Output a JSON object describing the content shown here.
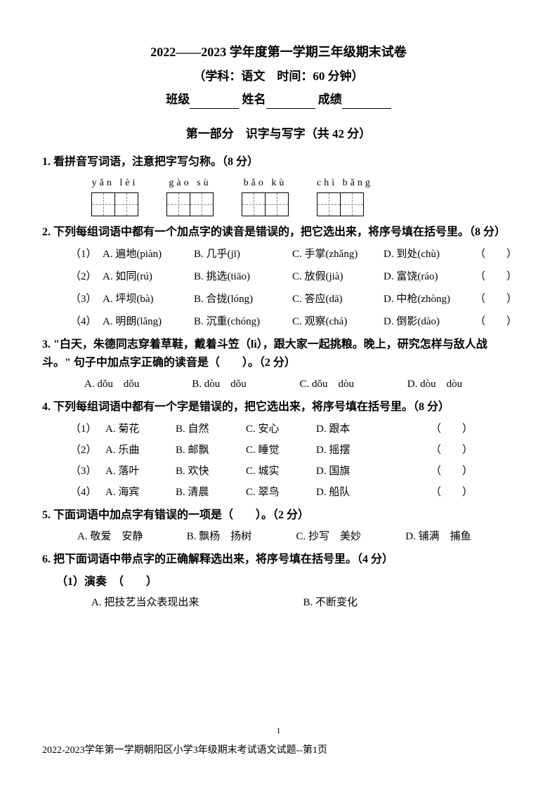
{
  "header": {
    "title_main": "2022——2023 学年度第一学期三年级期末试卷",
    "subject_line": "（学科：语文　时间：60 分钟）",
    "class_label": "班级",
    "name_label": "姓名",
    "score_label": "成绩"
  },
  "section1": {
    "title": "第一部分　识字与写字（共 42 分）"
  },
  "q1": {
    "title": "1. 看拼音写词语，注意把字写匀称。（8 分）",
    "items": [
      {
        "pinyin": "yǎn lèi",
        "cells": 2
      },
      {
        "pinyin": "gào sù",
        "cells": 2
      },
      {
        "pinyin": "bǎo kù",
        "cells": 2
      },
      {
        "pinyin": "chì bǎng",
        "cells": 2
      }
    ]
  },
  "q2": {
    "title": "2. 下列每组词语中都有一个加点字的读音是错误的，把它选出来，将序号填在括号里。（8 分）",
    "rows": [
      {
        "n": "（1）",
        "a": "A. 遍地(piàn)",
        "b": "B. 几乎(jī)",
        "c": "C. 手掌(zhǎng)",
        "d": "D. 到处(chù)"
      },
      {
        "n": "（2）",
        "a": "A. 如同(rú)",
        "b": "B. 挑选(tiāo)",
        "c": "C. 放假(jià)",
        "d": "D. 富饶(ráo)"
      },
      {
        "n": "（3）",
        "a": "A. 坪坝(bà)",
        "b": "B. 合拢(lóng)",
        "c": "C. 答应(dā)",
        "d": "D. 中枪(zhòng)"
      },
      {
        "n": "（4）",
        "a": "A. 明朗(lǎng)",
        "b": "B. 沉重(chóng)",
        "c": "C. 观察(chá)",
        "d": "D. 倒影(dào)"
      }
    ]
  },
  "q3": {
    "title": "3. \"白天，朱德同志穿着草鞋，戴着斗笠（lì），跟大家一起挑粮。晚上，研究怎样与敌人战斗。\" 句子中加点字正确的读音是（　　）。（2 分）",
    "opts": [
      "A. dǒu　dǒu",
      "B. dòu　dǒu",
      "C. dǒu　dòu",
      "D. dòu　dòu"
    ]
  },
  "q4": {
    "title": "4. 下列每组词语中都有一个字是错误的，把它选出来，将序号填在括号里。（8 分）",
    "rows": [
      {
        "n": "（1）",
        "a": "A. 菊花",
        "b": "B. 自然",
        "c": "C. 安心",
        "d": "D. 跟本"
      },
      {
        "n": "（2）",
        "a": "A. 乐曲",
        "b": "B. 邮飘",
        "c": "C. 睡觉",
        "d": "D. 摇摆"
      },
      {
        "n": "（3）",
        "a": "A. 落叶",
        "b": "B. 欢快",
        "c": "C. 城实",
        "d": "D. 国旗"
      },
      {
        "n": "（4）",
        "a": "A. 海宾",
        "b": "B. 清晨",
        "c": "C. 翠鸟",
        "d": "D. 船队"
      }
    ]
  },
  "q5": {
    "title": "5. 下面词语中加点字有错误的一项是（　　）。（2 分）",
    "opts": [
      "A. 敬爱　安静",
      "B. 飘杨　扬树",
      "C. 抄写　美妙",
      "D. 铺满　捕鱼"
    ]
  },
  "q6": {
    "title": "6. 把下面词语中带点字的正确解释选出来，将序号填在括号里。（4 分）",
    "sub": "（1）演奏　（　　）",
    "opts": [
      "A. 把技艺当众表现出来",
      "B. 不断变化"
    ]
  },
  "page_num": "1",
  "footer": "2022-2023学年第一学期朝阳区小学3年级期末考试语文试题--第1页"
}
